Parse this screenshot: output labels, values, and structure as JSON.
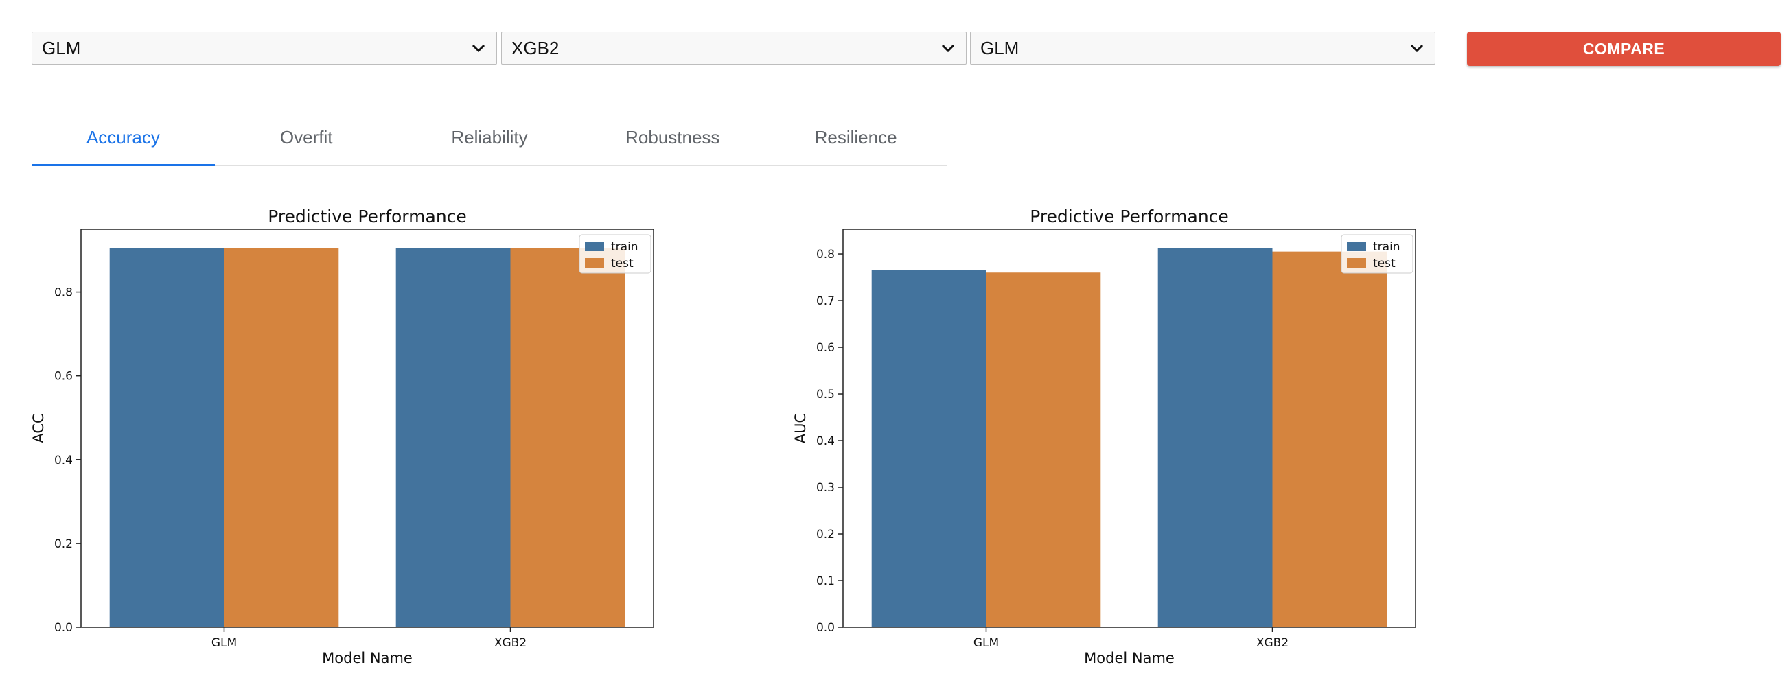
{
  "selectors": [
    {
      "value": "GLM"
    },
    {
      "value": "XGB2"
    },
    {
      "value": "GLM"
    }
  ],
  "compare_label": "COMPARE",
  "tabs": [
    {
      "label": "Accuracy",
      "active": true
    },
    {
      "label": "Overfit",
      "active": false
    },
    {
      "label": "Reliability",
      "active": false
    },
    {
      "label": "Robustness",
      "active": false
    },
    {
      "label": "Resilience",
      "active": false
    }
  ],
  "colors": {
    "train": "#43739d",
    "test": "#d5843e",
    "accent": "#1a73e8",
    "compare_button": "#e04f3c"
  },
  "chart_data": [
    {
      "type": "bar",
      "title": "Predictive Performance",
      "xlabel": "Model Name",
      "ylabel": "ACC",
      "categories": [
        "GLM",
        "XGB2"
      ],
      "series": [
        {
          "name": "train",
          "values": [
            0.905,
            0.905
          ]
        },
        {
          "name": "test",
          "values": [
            0.905,
            0.905
          ]
        }
      ],
      "ylim": [
        0,
        0.95
      ],
      "yticks": [
        "0.0",
        "0.2",
        "0.4",
        "0.6",
        "0.8"
      ],
      "legend": "top-right",
      "grid": false
    },
    {
      "type": "bar",
      "title": "Predictive Performance",
      "xlabel": "Model Name",
      "ylabel": "AUC",
      "categories": [
        "GLM",
        "XGB2"
      ],
      "series": [
        {
          "name": "train",
          "values": [
            0.765,
            0.812
          ]
        },
        {
          "name": "test",
          "values": [
            0.76,
            0.805
          ]
        }
      ],
      "ylim": [
        0,
        0.853
      ],
      "yticks": [
        "0.0",
        "0.1",
        "0.2",
        "0.3",
        "0.4",
        "0.5",
        "0.6",
        "0.7",
        "0.8"
      ],
      "legend": "top-right",
      "grid": false
    }
  ]
}
